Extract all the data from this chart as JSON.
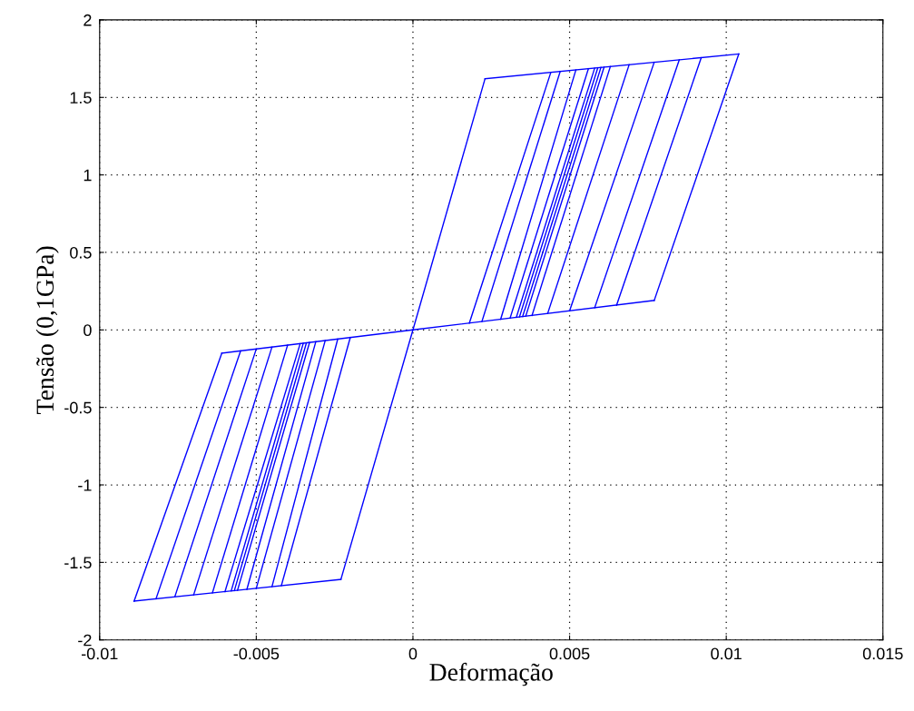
{
  "chart_data": {
    "type": "line",
    "xlabel": "Deformação",
    "ylabel": "Tensão (0,1GPa)",
    "xlim": [
      -0.01,
      0.015
    ],
    "xticks": [
      -0.01,
      -0.005,
      0,
      0.005,
      0.01,
      0.015
    ],
    "ylim": [
      -2,
      2
    ],
    "yticks": [
      -2,
      -1.5,
      -1,
      -0.5,
      0,
      0.5,
      1,
      1.5,
      2
    ],
    "grid": true,
    "marker": "none",
    "line_style": "solid",
    "series": [
      {
        "color": "#0000ff",
        "x": [
          -0.0023,
          0,
          0.0023
        ],
        "values": [
          -1.61,
          0,
          1.62
        ]
      },
      {
        "color": "#0000ff",
        "x": [
          -0.0061,
          0,
          0.0077
        ],
        "values": [
          -0.15,
          0,
          0.19
        ]
      },
      {
        "color": "#0000ff",
        "x": [
          0.0023,
          0.0104
        ],
        "values": [
          1.62,
          1.78
        ]
      },
      {
        "color": "#0000ff",
        "x": [
          -0.0089,
          -0.0023
        ],
        "values": [
          -1.75,
          -1.61
        ]
      },
      {
        "color": "#0000ff",
        "x": [
          0.0077,
          0.0104
        ],
        "values": [
          0.19,
          1.78
        ]
      },
      {
        "color": "#0000ff",
        "x": [
          -0.0089,
          -0.0061
        ],
        "values": [
          -1.75,
          -0.15
        ]
      },
      {
        "color": "#0000ff",
        "x": [
          0.0065,
          0.0092
        ],
        "values": [
          0.16,
          1.756
        ]
      },
      {
        "color": "#0000ff",
        "x": [
          0.0058,
          0.0085
        ],
        "values": [
          0.143,
          1.742
        ]
      },
      {
        "color": "#0000ff",
        "x": [
          0.005,
          0.0077
        ],
        "values": [
          0.123,
          1.727
        ]
      },
      {
        "color": "#0000ff",
        "x": [
          0.0043,
          0.0069
        ],
        "values": [
          0.106,
          1.711
        ]
      },
      {
        "color": "#0000ff",
        "x": [
          0.0038,
          0.0063
        ],
        "values": [
          0.093,
          1.699
        ]
      },
      {
        "color": "#0000ff",
        "x": [
          0.0036,
          0.0061
        ],
        "values": [
          0.089,
          1.695
        ]
      },
      {
        "color": "#0000ff",
        "x": [
          0.0035,
          0.006
        ],
        "values": [
          0.086,
          1.693
        ]
      },
      {
        "color": "#0000ff",
        "x": [
          0.0034,
          0.0059
        ],
        "values": [
          0.084,
          1.691
        ]
      },
      {
        "color": "#0000ff",
        "x": [
          0.0033,
          0.0058
        ],
        "values": [
          0.081,
          1.689
        ]
      },
      {
        "color": "#0000ff",
        "x": [
          0.0031,
          0.0056
        ],
        "values": [
          0.076,
          1.685
        ]
      },
      {
        "color": "#0000ff",
        "x": [
          0.0028,
          0.0052
        ],
        "values": [
          0.069,
          1.677
        ]
      },
      {
        "color": "#0000ff",
        "x": [
          0.0022,
          0.0047
        ],
        "values": [
          0.054,
          1.668
        ]
      },
      {
        "color": "#0000ff",
        "x": [
          0.0018,
          0.0044
        ],
        "values": [
          0.044,
          1.661
        ]
      },
      {
        "color": "#0000ff",
        "x": [
          -0.0082,
          -0.0055
        ],
        "values": [
          -1.735,
          -0.135
        ]
      },
      {
        "color": "#0000ff",
        "x": [
          -0.0076,
          -0.005
        ],
        "values": [
          -1.722,
          -0.123
        ]
      },
      {
        "color": "#0000ff",
        "x": [
          -0.007,
          -0.0045
        ],
        "values": [
          -1.71,
          -0.111
        ]
      },
      {
        "color": "#0000ff",
        "x": [
          -0.0064,
          -0.004
        ],
        "values": [
          -1.697,
          -0.098
        ]
      },
      {
        "color": "#0000ff",
        "x": [
          -0.006,
          -0.0036
        ],
        "values": [
          -1.689,
          -0.089
        ]
      },
      {
        "color": "#0000ff",
        "x": [
          -0.0058,
          -0.0035
        ],
        "values": [
          -1.684,
          -0.086
        ]
      },
      {
        "color": "#0000ff",
        "x": [
          -0.0057,
          -0.0034
        ],
        "values": [
          -1.682,
          -0.084
        ]
      },
      {
        "color": "#0000ff",
        "x": [
          -0.0056,
          -0.0033
        ],
        "values": [
          -1.68,
          -0.081
        ]
      },
      {
        "color": "#0000ff",
        "x": [
          -0.0053,
          -0.0031
        ],
        "values": [
          -1.674,
          -0.076
        ]
      },
      {
        "color": "#0000ff",
        "x": [
          -0.005,
          -0.0028
        ],
        "values": [
          -1.667,
          -0.069
        ]
      },
      {
        "color": "#0000ff",
        "x": [
          -0.0045,
          -0.0024
        ],
        "values": [
          -1.657,
          -0.059
        ]
      },
      {
        "color": "#0000ff",
        "x": [
          -0.0042,
          -0.002
        ],
        "values": [
          -1.65,
          -0.049
        ]
      }
    ]
  }
}
